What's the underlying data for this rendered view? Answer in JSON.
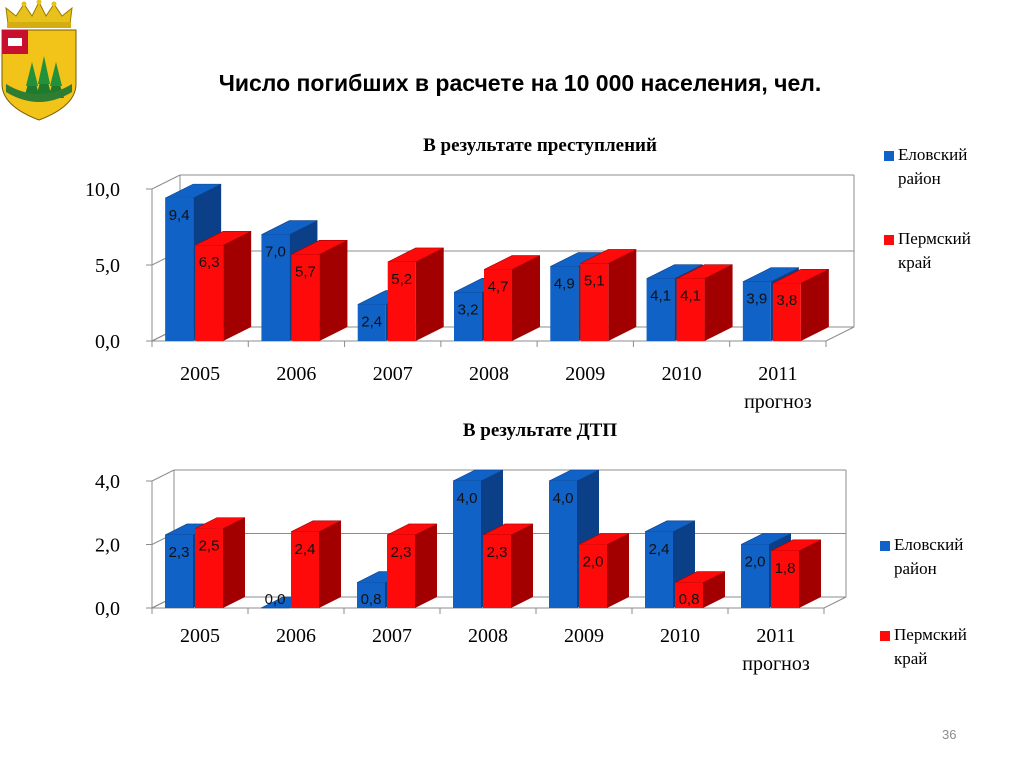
{
  "slide": {
    "title": "Число погибших в расчете на 10 000 населения, чел.",
    "page_number": "36"
  },
  "colors": {
    "blue": "#1062C6",
    "blue_dark": "#0B3F87",
    "red": "#FF0A0A",
    "red_dark": "#A20000"
  },
  "icons": {
    "emblem": "coat-of-arms-emblem"
  },
  "chart_data": [
    {
      "type": "bar",
      "title": "В результате преступлений",
      "categories": [
        "2005",
        "2006",
        "2007",
        "2008",
        "2009",
        "2010",
        "2011 прогноз"
      ],
      "category_lines": [
        [
          "2005"
        ],
        [
          "2006"
        ],
        [
          "2007"
        ],
        [
          "2008"
        ],
        [
          "2009"
        ],
        [
          "2010"
        ],
        [
          "2011",
          "прогноз"
        ]
      ],
      "series": [
        {
          "name": "Еловский район",
          "name_lines": [
            "Еловский",
            "район"
          ],
          "values": [
            9.4,
            7.0,
            2.4,
            3.2,
            4.9,
            4.1,
            3.9
          ],
          "labels": [
            "9,4",
            "7,0",
            "2,4",
            "3,2",
            "4,9",
            "4,1",
            "3,9"
          ]
        },
        {
          "name": "Пермский край",
          "name_lines": [
            "Пермский",
            "край"
          ],
          "values": [
            6.3,
            5.7,
            5.2,
            4.7,
            5.1,
            4.1,
            3.8
          ],
          "labels": [
            "6,3",
            "5,7",
            "5,2",
            "4,7",
            "5,1",
            "4,1",
            "3,8"
          ]
        }
      ],
      "yticks": [
        "0,0",
        "5,0",
        "10,0"
      ],
      "ylim": [
        0,
        10
      ],
      "grid": true,
      "legend_position": "right",
      "xlabel": "",
      "ylabel": ""
    },
    {
      "type": "bar",
      "title": "В результате ДТП",
      "categories": [
        "2005",
        "2006",
        "2007",
        "2008",
        "2009",
        "2010",
        "2011 прогноз"
      ],
      "category_lines": [
        [
          "2005"
        ],
        [
          "2006"
        ],
        [
          "2007"
        ],
        [
          "2008"
        ],
        [
          "2009"
        ],
        [
          "2010"
        ],
        [
          "2011",
          "прогноз"
        ]
      ],
      "series": [
        {
          "name": "Еловский район",
          "name_lines": [
            "Еловский",
            "район"
          ],
          "values": [
            2.3,
            0.0,
            0.8,
            4.0,
            4.0,
            2.4,
            2.0
          ],
          "labels": [
            "2,3",
            "0,0",
            "0,8",
            "4,0",
            "4,0",
            "2,4",
            "2,0"
          ]
        },
        {
          "name": "Пермский край",
          "name_lines": [
            "Пермский",
            "край"
          ],
          "values": [
            2.5,
            2.4,
            2.3,
            2.3,
            2.0,
            0.8,
            1.8
          ],
          "labels": [
            "2,5",
            "2,4",
            "2,3",
            "2,3",
            "2,0",
            "0,8",
            "1,8"
          ]
        }
      ],
      "yticks": [
        "0,0",
        "2,0",
        "4,0"
      ],
      "ylim": [
        0,
        4
      ],
      "grid": true,
      "legend_position": "right",
      "xlabel": "",
      "ylabel": ""
    }
  ]
}
